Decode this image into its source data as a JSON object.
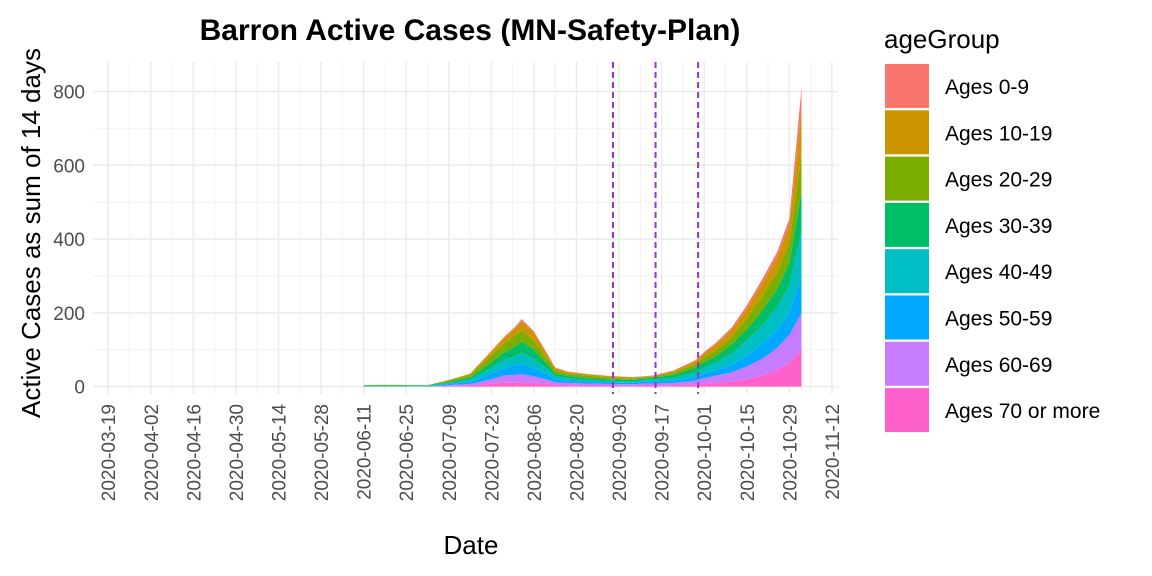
{
  "chart_data": {
    "type": "area",
    "title": "Barron Active Cases (MN-Safety-Plan)",
    "xlabel": "Date",
    "ylabel": "Active Cases as sum of 14 days",
    "ylim": [
      -20,
      880
    ],
    "y_ticks": [
      0,
      200,
      400,
      600,
      800
    ],
    "x_ticks": [
      "2020-03-19",
      "2020-04-02",
      "2020-04-16",
      "2020-04-30",
      "2020-05-14",
      "2020-05-28",
      "2020-06-11",
      "2020-06-25",
      "2020-07-09",
      "2020-07-23",
      "2020-08-06",
      "2020-08-20",
      "2020-09-03",
      "2020-09-17",
      "2020-10-01",
      "2020-10-15",
      "2020-10-29",
      "2020-11-12"
    ],
    "x_range": [
      "2020-03-14",
      "2020-11-14"
    ],
    "stacked": true,
    "legend_title": "ageGroup",
    "legend_position": "right",
    "grid": true,
    "vlines": {
      "dates": [
        "2020-09-01",
        "2020-09-15",
        "2020-09-29"
      ],
      "style": "dashed",
      "color": "#9932CC"
    },
    "x": [
      "2020-06-11",
      "2020-06-18",
      "2020-06-25",
      "2020-07-02",
      "2020-07-09",
      "2020-07-16",
      "2020-07-23",
      "2020-07-27",
      "2020-07-31",
      "2020-08-02",
      "2020-08-06",
      "2020-08-10",
      "2020-08-13",
      "2020-08-17",
      "2020-08-24",
      "2020-08-31",
      "2020-09-07",
      "2020-09-11",
      "2020-09-14",
      "2020-09-21",
      "2020-09-28",
      "2020-10-01",
      "2020-10-05",
      "2020-10-10",
      "2020-10-15",
      "2020-10-20",
      "2020-10-25",
      "2020-10-29",
      "2020-11-02"
    ],
    "series": [
      {
        "name": "Ages 70 or more",
        "color": "#FF61CC",
        "values": [
          0,
          0,
          0,
          0,
          2,
          3,
          8,
          12,
          12,
          12,
          10,
          8,
          5,
          4,
          3,
          3,
          2,
          3,
          3,
          4,
          6,
          8,
          10,
          14,
          20,
          30,
          45,
          65,
          100
        ]
      },
      {
        "name": "Ages 60-69",
        "color": "#C77CFF",
        "values": [
          0,
          0,
          0,
          0,
          2,
          4,
          12,
          18,
          20,
          22,
          18,
          12,
          7,
          6,
          5,
          4,
          4,
          5,
          5,
          6,
          10,
          15,
          20,
          25,
          35,
          45,
          60,
          75,
          100
        ]
      },
      {
        "name": "Ages 50-59",
        "color": "#00A9FF",
        "values": [
          1,
          1,
          1,
          1,
          3,
          6,
          15,
          20,
          25,
          28,
          22,
          15,
          8,
          6,
          5,
          4,
          4,
          5,
          6,
          7,
          10,
          13,
          15,
          20,
          30,
          40,
          50,
          60,
          100
        ]
      },
      {
        "name": "Ages 40-49",
        "color": "#00BFC4",
        "values": [
          1,
          1,
          1,
          1,
          3,
          6,
          15,
          22,
          25,
          30,
          25,
          15,
          8,
          7,
          5,
          5,
          4,
          5,
          5,
          7,
          12,
          15,
          20,
          30,
          40,
          50,
          60,
          75,
          120
        ]
      },
      {
        "name": "Ages 30-39",
        "color": "#00BE67",
        "values": [
          1,
          1,
          1,
          1,
          3,
          6,
          15,
          20,
          28,
          30,
          25,
          15,
          8,
          6,
          5,
          4,
          4,
          4,
          5,
          8,
          13,
          15,
          18,
          25,
          30,
          40,
          50,
          60,
          110
        ]
      },
      {
        "name": "Ages 20-29",
        "color": "#7CAE00",
        "values": [
          1,
          2,
          1,
          1,
          4,
          7,
          20,
          25,
          30,
          30,
          25,
          15,
          8,
          6,
          6,
          5,
          4,
          3,
          3,
          6,
          10,
          14,
          17,
          20,
          30,
          40,
          45,
          55,
          100
        ]
      },
      {
        "name": "Ages 10-19",
        "color": "#CD9600",
        "values": [
          0,
          0,
          0,
          0,
          1,
          3,
          10,
          13,
          20,
          25,
          20,
          12,
          6,
          5,
          4,
          3,
          3,
          2,
          2,
          4,
          7,
          10,
          15,
          20,
          25,
          35,
          40,
          45,
          120
        ]
      },
      {
        "name": "Ages 0-9",
        "color": "#F8766D",
        "values": [
          0,
          0,
          0,
          0,
          0,
          0,
          2,
          3,
          4,
          6,
          5,
          3,
          2,
          1,
          1,
          1,
          1,
          1,
          1,
          2,
          3,
          4,
          5,
          6,
          10,
          10,
          15,
          20,
          60
        ]
      }
    ],
    "legend_order": [
      "Ages 0-9",
      "Ages 10-19",
      "Ages 20-29",
      "Ages 30-39",
      "Ages 40-49",
      "Ages 50-59",
      "Ages 60-69",
      "Ages 70 or more"
    ]
  }
}
